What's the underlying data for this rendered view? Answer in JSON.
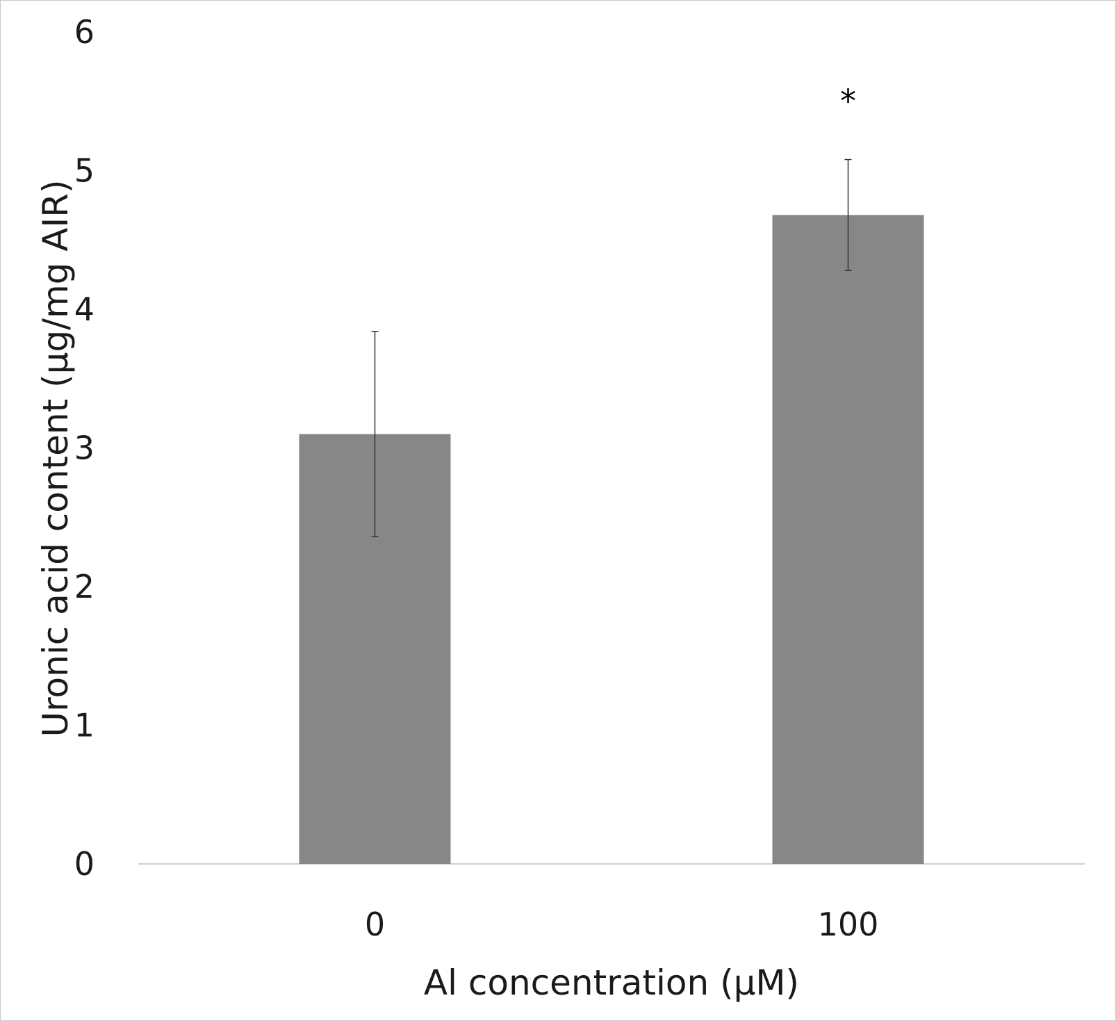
{
  "chart_data": {
    "type": "bar",
    "title": "",
    "categories": [
      "0",
      "100"
    ],
    "values": [
      3.1,
      4.68
    ],
    "error": [
      0.74,
      0.4
    ],
    "annotations": [
      "",
      "*"
    ],
    "xlabel": "Al concentration (μM)",
    "ylabel": "Uronic acid content (μg/mg AIR)",
    "ylim": [
      0,
      6
    ],
    "yticks": [
      0,
      1,
      2,
      3,
      4,
      5,
      6
    ],
    "grid": false,
    "legend": "none",
    "colors": {
      "bar": "#878787",
      "axis": "#d0d0d0",
      "error_bar": "#333333"
    }
  }
}
